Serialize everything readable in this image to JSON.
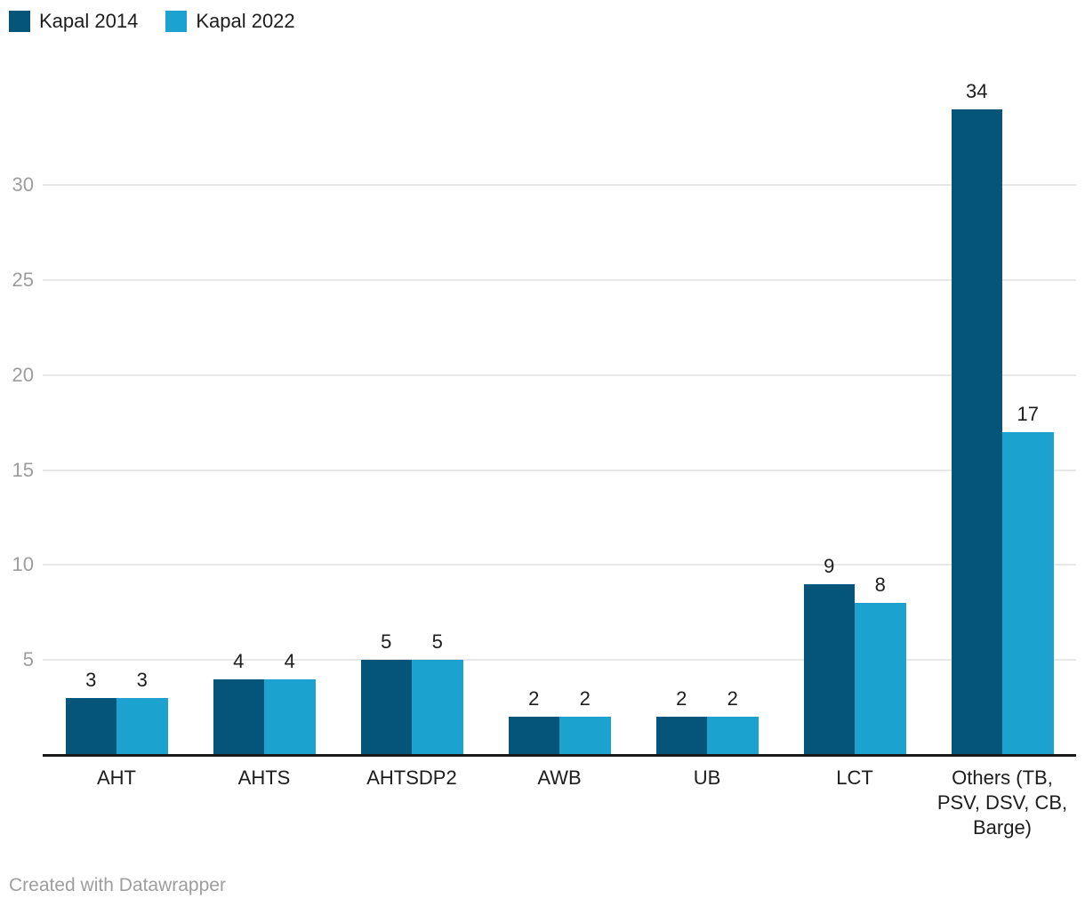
{
  "legend": {
    "items": [
      {
        "label": "Kapal 2014",
        "color": "#045579"
      },
      {
        "label": "Kapal 2022",
        "color": "#1ba2ce"
      }
    ]
  },
  "footer": {
    "credit": "Created with Datawrapper"
  },
  "chart_data": {
    "type": "bar",
    "title": "",
    "xlabel": "",
    "ylabel": "",
    "categories": [
      "AHT",
      "AHTS",
      "AHTSDP2",
      "AWB",
      "UB",
      "LCT",
      "Others (TB, PSV, DSV, CB, Barge)"
    ],
    "series": [
      {
        "name": "Kapal 2014",
        "color": "#045579",
        "values": [
          3,
          4,
          5,
          2,
          2,
          9,
          34
        ]
      },
      {
        "name": "Kapal 2022",
        "color": "#1ba2ce",
        "values": [
          3,
          4,
          5,
          2,
          2,
          8,
          17
        ]
      }
    ],
    "ylim": [
      0,
      35
    ],
    "yticks": [
      5,
      10,
      15,
      20,
      25,
      30
    ],
    "grid": true,
    "legend_position": "top-left",
    "value_labels": true,
    "colors": {
      "grid": "#e8e8e8",
      "axis_line": "#1a1a1a",
      "tick_label": "#9d9d9d",
      "value_label": "#1d1d1d",
      "category_label": "#1d1d1d",
      "credit": "#9e9e9e"
    }
  }
}
